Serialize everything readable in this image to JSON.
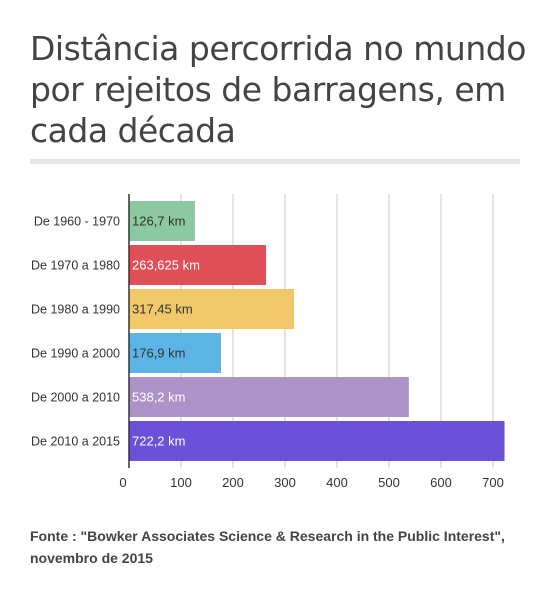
{
  "title": "Distância percorrida no mundo por rejeitos de barragens, em cada década",
  "source": "Fonte : \"Bowker Associates Science & Research in the Public Interest\", novembro de 2015",
  "chart_data": {
    "type": "bar",
    "orientation": "horizontal",
    "categories": [
      "De 1960 - 1970",
      "De 1970 a 1980",
      "De 1980 a 1990",
      "De 1990 a 2000",
      "De 2000 a 2010",
      "De 2010 a 2015"
    ],
    "values": [
      126.7,
      263.625,
      317.45,
      176.9,
      538.2,
      722.2
    ],
    "value_labels": [
      "126,7 km",
      "263,625 km",
      "317,45 km",
      "176,9 km",
      "538,2 km",
      "722,2 km"
    ],
    "colors": [
      "#8cc8a0",
      "#de4f57",
      "#f0c86a",
      "#5cb4e6",
      "#ad92c8",
      "#6b50d8"
    ],
    "label_colors": [
      "#333333",
      "#ffffff",
      "#333333",
      "#333333",
      "#ffffff",
      "#ffffff"
    ],
    "xticks": [
      0,
      100,
      200,
      300,
      400,
      500,
      600,
      700
    ],
    "xlim": [
      0,
      730
    ],
    "grid": true,
    "xlabel": "",
    "ylabel": ""
  }
}
